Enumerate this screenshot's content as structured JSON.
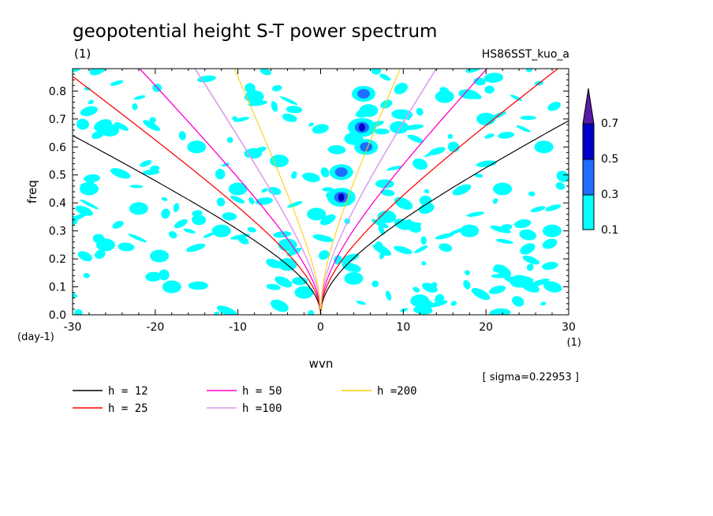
{
  "chart_data": {
    "type": "heatmap",
    "title": "geopotential height S-T power spectrum",
    "subtitle_left": "(1)",
    "subtitle_right": "HS86SST_kuo_a",
    "xlabel": "wvn",
    "ylabel": "freq",
    "x_unit": "(1)",
    "y_unit": "(day-1)",
    "xlim": [
      -30,
      30
    ],
    "ylim": [
      0,
      0.88
    ],
    "x_ticks": [
      -30,
      -20,
      -10,
      0,
      10,
      20,
      30
    ],
    "x_tick_labels": [
      "-30",
      "-20",
      "-10",
      "0",
      "10",
      "20",
      "30"
    ],
    "y_ticks": [
      0.0,
      0.1,
      0.2,
      0.3,
      0.4,
      0.5,
      0.6,
      0.7,
      0.8
    ],
    "y_tick_labels": [
      "0.0",
      "0.1",
      "0.2",
      "0.3",
      "0.4",
      "0.5",
      "0.6",
      "0.7",
      "0.8"
    ],
    "sigma_note": "[ sigma=0.22953 ]",
    "colorbar": {
      "levels": [
        "0.1",
        "0.3",
        "0.5",
        "0.7"
      ],
      "colors": [
        "#00ffff",
        "#1e6fff",
        "#0000c8",
        "#5a1aa8"
      ]
    },
    "spots": [
      {
        "x": 5.0,
        "y": 0.67,
        "level": 3
      },
      {
        "x": 5.2,
        "y": 0.79,
        "level": 2
      },
      {
        "x": 2.5,
        "y": 0.42,
        "level": 3
      },
      {
        "x": 2.5,
        "y": 0.51,
        "level": 2
      },
      {
        "x": 4.0,
        "y": 0.63,
        "level": 1
      },
      {
        "x": 5.5,
        "y": 0.6,
        "level": 2
      },
      {
        "x": -0.5,
        "y": 0.36,
        "level": 1
      },
      {
        "x": -4.0,
        "y": 0.18,
        "level": 1
      },
      {
        "x": -4.0,
        "y": 0.25,
        "level": 1
      },
      {
        "x": 9.5,
        "y": 0.67,
        "level": 1
      },
      {
        "x": 5.8,
        "y": 0.73,
        "level": 1
      },
      {
        "x": -25.5,
        "y": 0.66,
        "level": 1
      },
      {
        "x": -19.5,
        "y": 0.21,
        "level": 1
      },
      {
        "x": -2.0,
        "y": 0.08,
        "level": 1
      },
      {
        "x": 4.0,
        "y": 0.13,
        "level": 1
      },
      {
        "x": -28.0,
        "y": 0.45,
        "level": 1
      },
      {
        "x": -8.0,
        "y": 0.78,
        "level": 1
      },
      {
        "x": -15.0,
        "y": 0.6,
        "level": 1
      },
      {
        "x": 12.0,
        "y": 0.05,
        "level": 1
      },
      {
        "x": 22.0,
        "y": 0.45,
        "level": 1
      },
      {
        "x": 27.0,
        "y": 0.6,
        "level": 1
      },
      {
        "x": -22.0,
        "y": 0.38,
        "level": 1
      },
      {
        "x": 18.0,
        "y": 0.3,
        "level": 1
      },
      {
        "x": -12.0,
        "y": 0.3,
        "level": 1
      },
      {
        "x": 15.0,
        "y": 0.78,
        "level": 1
      },
      {
        "x": -5.0,
        "y": 0.55,
        "level": 1
      },
      {
        "x": 24.0,
        "y": 0.12,
        "level": 1
      },
      {
        "x": -18.0,
        "y": 0.1,
        "level": 1
      },
      {
        "x": 8.0,
        "y": 0.35,
        "level": 1
      },
      {
        "x": 20.0,
        "y": 0.7,
        "level": 1
      },
      {
        "x": -26.0,
        "y": 0.25,
        "level": 1
      },
      {
        "x": 28.0,
        "y": 0.3,
        "level": 1
      },
      {
        "x": -10.0,
        "y": 0.45,
        "level": 1
      }
    ],
    "series": [
      {
        "name": "h = 12",
        "h": 12,
        "color": "#000000",
        "ks": [
          1,
          2
        ]
      },
      {
        "name": "h = 25",
        "h": 25,
        "color": "#ff0000",
        "ks": [
          1,
          2,
          3
        ]
      },
      {
        "name": "h = 50",
        "h": 50,
        "color": "#ff00cc",
        "ks": [
          1,
          2,
          3
        ]
      },
      {
        "name": "h =100",
        "h": 100,
        "color": "#dd99ee",
        "ks": [
          1,
          2,
          3
        ]
      },
      {
        "name": "h =200",
        "h": 200,
        "color": "#ffcc00",
        "ks": [
          1
        ]
      }
    ]
  }
}
